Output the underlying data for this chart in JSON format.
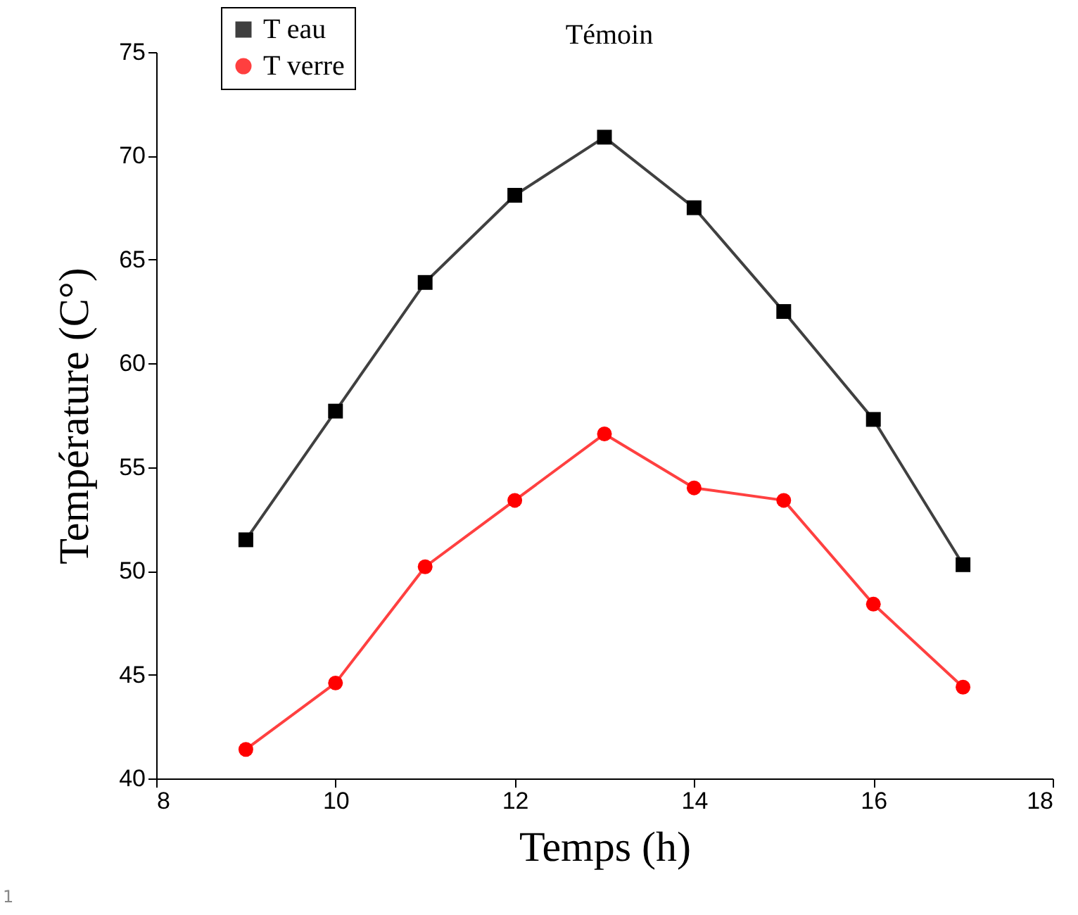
{
  "chart_data": {
    "type": "line",
    "title": "Témoin",
    "xlabel": "Temps (h)",
    "ylabel": "Température (C°)",
    "x": [
      9,
      10,
      11,
      12,
      13,
      14,
      15,
      16,
      17
    ],
    "series": [
      {
        "name": "T eau",
        "color": "#000000",
        "marker": "square",
        "values": [
          51.5,
          57.7,
          63.9,
          68.1,
          70.9,
          67.5,
          62.5,
          57.3,
          50.3
        ]
      },
      {
        "name": "T verre",
        "color": "#ff0000",
        "marker": "circle",
        "values": [
          41.4,
          44.6,
          50.2,
          53.4,
          56.6,
          54.0,
          53.4,
          48.4,
          44.4
        ]
      }
    ],
    "xlim": [
      8,
      18
    ],
    "xticks": [
      8,
      10,
      12,
      14,
      16,
      18
    ],
    "ylim": [
      40,
      75
    ],
    "yticks": [
      40,
      45,
      50,
      55,
      60,
      65,
      70,
      75
    ],
    "grid": false,
    "legend": "top left",
    "annotations": [
      "1"
    ]
  }
}
